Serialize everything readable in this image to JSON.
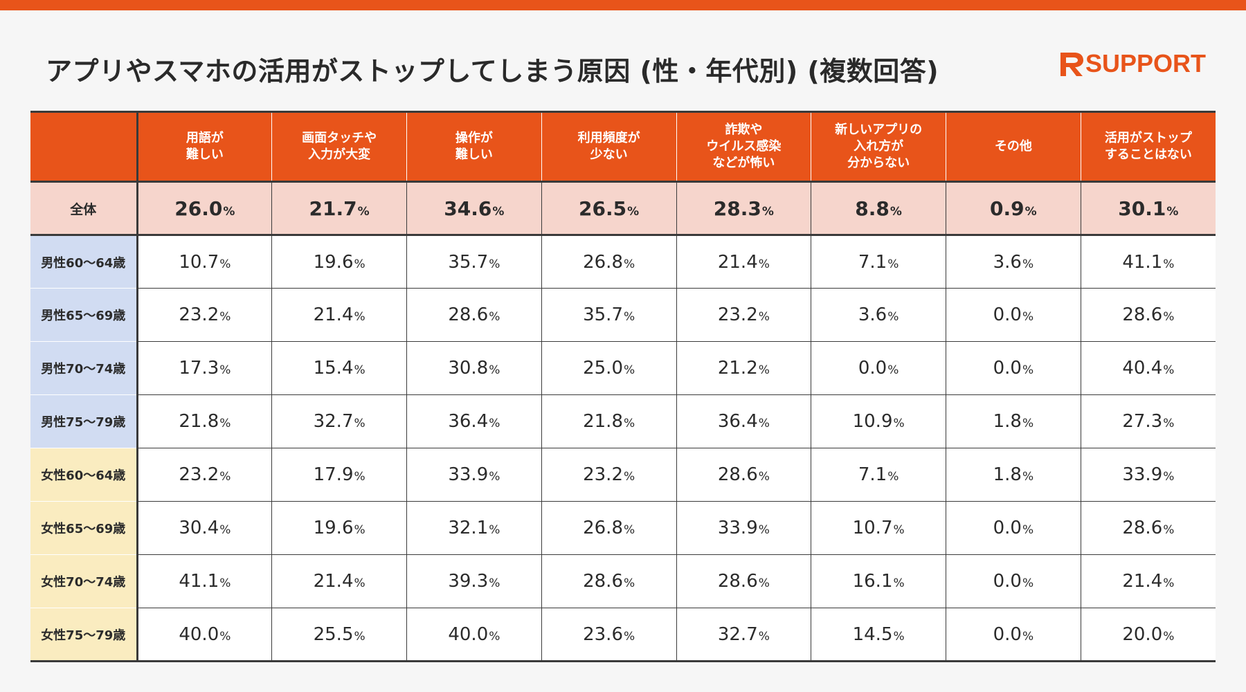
{
  "title": "アプリやスマホの活用がストップしてしまう原因 (性・年代別) (複数回答)",
  "logo": {
    "text": "SUPPORT",
    "color": "#e8541a"
  },
  "colors": {
    "accent": "#e8541a",
    "total_row": "#f6d5cc",
    "male_label": "#d1dcf2",
    "female_label": "#faecc0"
  },
  "chart_data": {
    "type": "table",
    "columns": [
      "用語が\n難しい",
      "画面タッチや\n入力が大変",
      "操作が\n難しい",
      "利用頻度が\n少ない",
      "詐欺や\nウイルス感染\nなどが怖い",
      "新しいアプリの\n入れ方が\n分からない",
      "その他",
      "活用がストップ\nすることはない"
    ],
    "unit": "%",
    "rows": [
      {
        "label": "全体",
        "group": "total",
        "values": [
          "26.0",
          "21.7",
          "34.6",
          "26.5",
          "28.3",
          "8.8",
          "0.9",
          "30.1"
        ]
      },
      {
        "label": "男性60～64歳",
        "group": "male",
        "values": [
          "10.7",
          "19.6",
          "35.7",
          "26.8",
          "21.4",
          "7.1",
          "3.6",
          "41.1"
        ]
      },
      {
        "label": "男性65～69歳",
        "group": "male",
        "values": [
          "23.2",
          "21.4",
          "28.6",
          "35.7",
          "23.2",
          "3.6",
          "0.0",
          "28.6"
        ]
      },
      {
        "label": "男性70～74歳",
        "group": "male",
        "values": [
          "17.3",
          "15.4",
          "30.8",
          "25.0",
          "21.2",
          "0.0",
          "0.0",
          "40.4"
        ]
      },
      {
        "label": "男性75～79歳",
        "group": "male",
        "values": [
          "21.8",
          "32.7",
          "36.4",
          "21.8",
          "36.4",
          "10.9",
          "1.8",
          "27.3"
        ]
      },
      {
        "label": "女性60～64歳",
        "group": "female",
        "values": [
          "23.2",
          "17.9",
          "33.9",
          "23.2",
          "28.6",
          "7.1",
          "1.8",
          "33.9"
        ]
      },
      {
        "label": "女性65～69歳",
        "group": "female",
        "values": [
          "30.4",
          "19.6",
          "32.1",
          "26.8",
          "33.9",
          "10.7",
          "0.0",
          "28.6"
        ]
      },
      {
        "label": "女性70～74歳",
        "group": "female",
        "values": [
          "41.1",
          "21.4",
          "39.3",
          "28.6",
          "28.6",
          "16.1",
          "0.0",
          "21.4"
        ]
      },
      {
        "label": "女性75～79歳",
        "group": "female",
        "values": [
          "40.0",
          "25.5",
          "40.0",
          "23.6",
          "32.7",
          "14.5",
          "0.0",
          "20.0"
        ]
      }
    ]
  }
}
